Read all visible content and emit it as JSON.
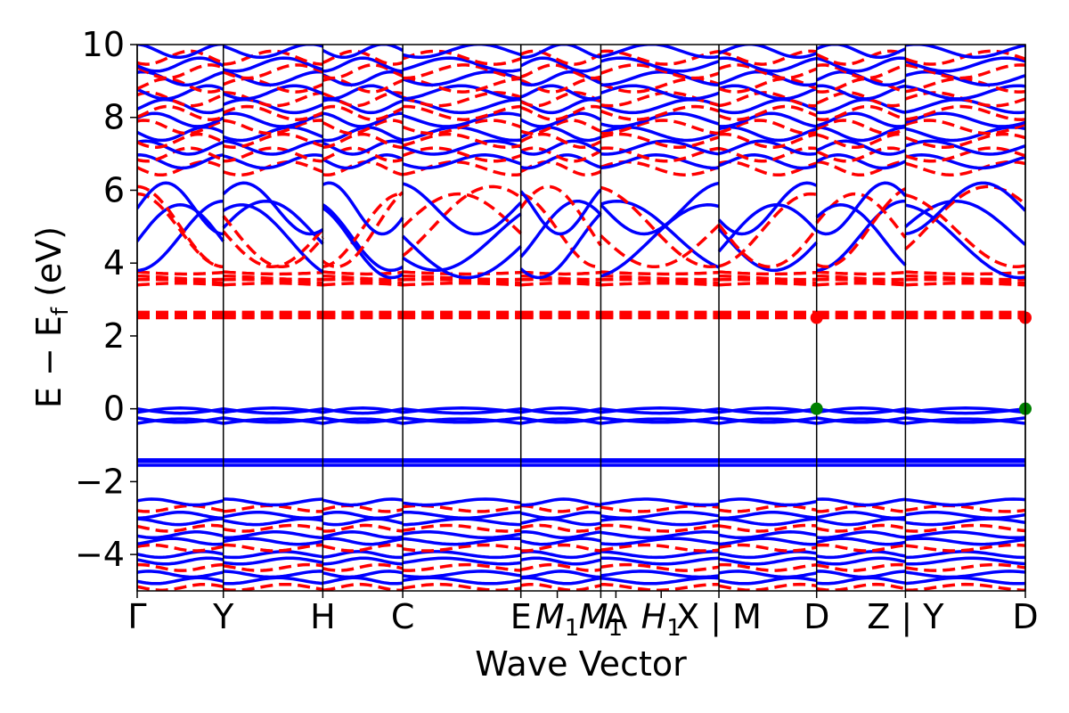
{
  "chart_data": {
    "type": "line",
    "title": "",
    "xlabel": "Wave Vector",
    "ylabel": "E − E",
    "ylabel_sub": "f",
    "ylabel_unit": " (eV)",
    "ylim": [
      -5,
      10
    ],
    "yticks": [
      {
        "value": 10,
        "label": "10"
      },
      {
        "value": 8,
        "label": "8"
      },
      {
        "value": 6,
        "label": "6"
      },
      {
        "value": 4,
        "label": "4"
      },
      {
        "value": 2,
        "label": "2"
      },
      {
        "value": 0,
        "label": "0"
      },
      {
        "value": -2,
        "label": "−2"
      },
      {
        "value": -4,
        "label": "−4"
      }
    ],
    "xlim": [
      0,
      10
    ],
    "kpath_ticks": [
      {
        "x": 0.0,
        "label": "Γ"
      },
      {
        "x": 0.97,
        "label": "Y"
      },
      {
        "x": 2.09,
        "label": "H"
      },
      {
        "x": 2.99,
        "label": "C"
      },
      {
        "x": 4.32,
        "label": "E"
      },
      {
        "x": 4.73,
        "label": "M1"
      },
      {
        "x": 5.22,
        "label": "M1"
      },
      {
        "x": 5.39,
        "label": "A"
      },
      {
        "x": 5.9,
        "label": "H1"
      },
      {
        "x": 6.55,
        "label": "X | M"
      },
      {
        "x": 7.65,
        "label": "D"
      },
      {
        "x": 8.65,
        "label": "Z | Y"
      },
      {
        "x": 10.0,
        "label": "D"
      }
    ],
    "path_segments": [
      0.0,
      0.97,
      2.09,
      2.99,
      4.32,
      5.22,
      6.55,
      7.65,
      8.65,
      10.0
    ],
    "series": [
      {
        "style": "solid",
        "color": "#0000ff"
      },
      {
        "style": "dashed",
        "color": "#ff0000"
      }
    ],
    "highlight_points": [
      {
        "x": 7.65,
        "y": 2.5,
        "color": "#ff0000"
      },
      {
        "x": 10.0,
        "y": 2.5,
        "color": "#ff0000"
      },
      {
        "x": 7.65,
        "y": 0.0,
        "color": "#008000"
      },
      {
        "x": 10.0,
        "y": 0.0,
        "color": "#008000"
      }
    ],
    "grid": false,
    "legend": "none"
  }
}
